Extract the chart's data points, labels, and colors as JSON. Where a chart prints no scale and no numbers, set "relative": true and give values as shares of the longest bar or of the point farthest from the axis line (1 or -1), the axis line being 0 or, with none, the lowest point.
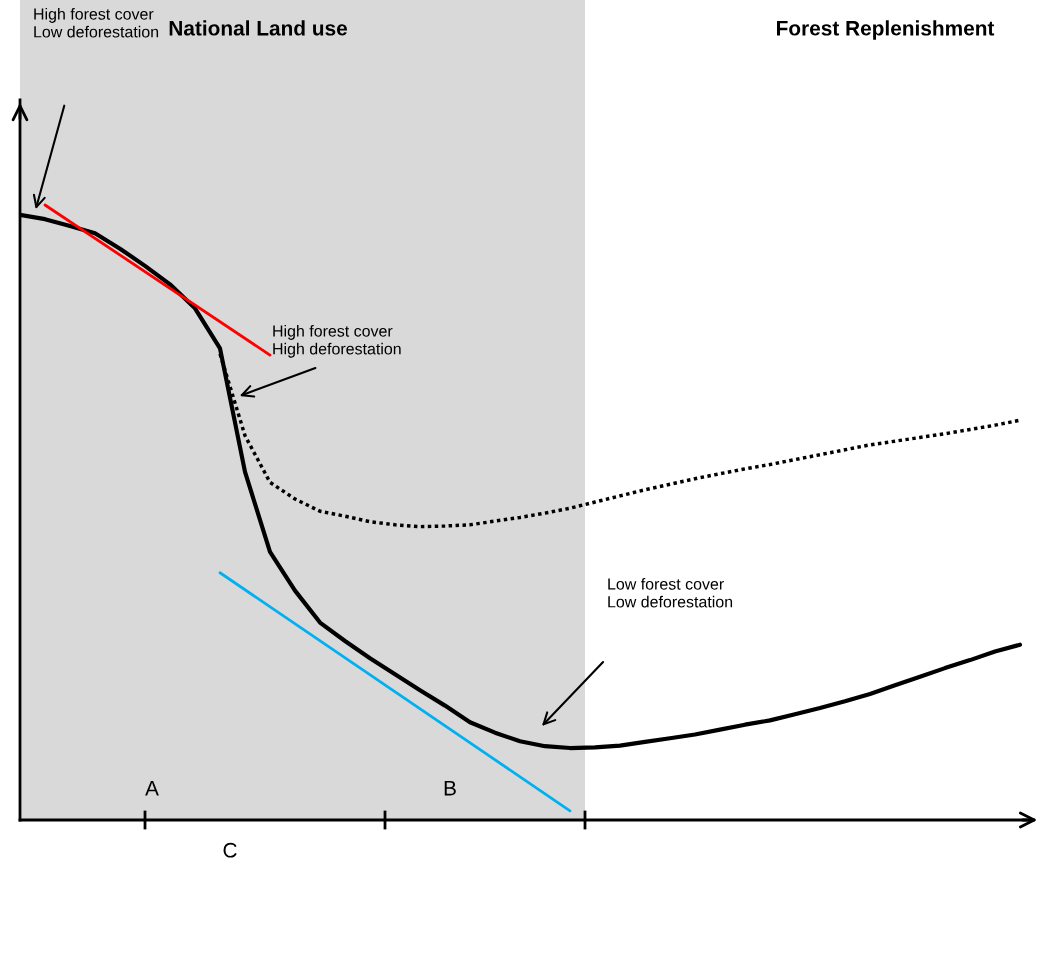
{
  "chart_data": {
    "type": "line",
    "relative": true,
    "categories": [
      null,
      null,
      null,
      null,
      null,
      null,
      null,
      null,
      null,
      null,
      null,
      null,
      null,
      null,
      null,
      null,
      null,
      null,
      null,
      null,
      null,
      null,
      null,
      null,
      null,
      null,
      null,
      null,
      null,
      null,
      null,
      null,
      null,
      null,
      null,
      null,
      null,
      null,
      null,
      null,
      null
    ],
    "series": [
      {
        "color": "#000000",
        "line_style": "solid",
        "values": [
          0.984,
          0.977,
          0.966,
          0.954,
          0.929,
          0.901,
          0.871,
          0.832,
          0.767,
          0.566,
          0.436,
          0.373,
          0.321,
          0.291,
          0.263,
          0.237,
          0.211,
          0.186,
          0.159,
          0.142,
          0.128,
          0.12,
          0.117,
          0.118,
          0.121,
          0.127,
          0.133,
          0.139,
          0.147,
          0.155,
          0.162,
          0.172,
          0.182,
          0.193,
          0.205,
          0.219,
          0.233,
          0.247,
          0.26,
          0.274,
          0.285
        ]
      },
      {
        "color": "#000000",
        "line_style": "dotted",
        "values": [
          null,
          null,
          null,
          null,
          null,
          null,
          null,
          null,
          0.758,
          0.625,
          0.549,
          0.522,
          0.502,
          0.494,
          0.485,
          0.48,
          0.477,
          0.478,
          0.48,
          0.486,
          0.492,
          0.499,
          0.507,
          0.517,
          0.527,
          0.537,
          0.546,
          0.555,
          0.563,
          0.571,
          0.578,
          0.586,
          0.594,
          0.602,
          0.61,
          0.616,
          0.622,
          0.628,
          0.635,
          0.642,
          0.65
        ]
      },
      {
        "color": "#ff0000",
        "line_style": "solid",
        "values": [
          null,
          1.0,
          null,
          null,
          null,
          null,
          null,
          null,
          null,
          null,
          0.756,
          null,
          null,
          null,
          null,
          null,
          null,
          null,
          null,
          null,
          null,
          null,
          null,
          null,
          null,
          null,
          null,
          null,
          null,
          null,
          null,
          null,
          null,
          null,
          null,
          null,
          null,
          null,
          null,
          null,
          null
        ]
      },
      {
        "color": "#00b0f0",
        "line_style": "solid",
        "values": [
          null,
          null,
          null,
          null,
          null,
          null,
          null,
          null,
          0.402,
          null,
          null,
          null,
          null,
          null,
          null,
          null,
          null,
          null,
          null,
          null,
          null,
          null,
          0.015,
          null,
          null,
          null,
          null,
          null,
          null,
          null,
          null,
          null,
          null,
          null,
          null,
          null,
          null,
          null,
          null,
          null,
          null
        ]
      }
    ],
    "annotations": [
      "High forest cover\nLow deforestation",
      "High forest cover\nHigh deforestation",
      "Low forest cover\nLow deforestation",
      "National Land use",
      "Forest Replenishment",
      "A",
      "B",
      "C"
    ]
  }
}
